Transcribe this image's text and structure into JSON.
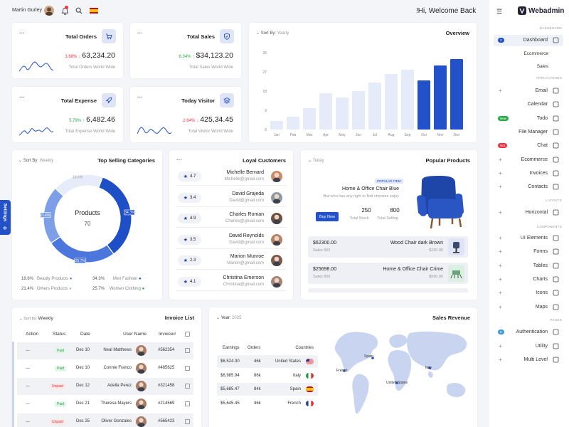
{
  "header": {
    "username": "Martin Gurley",
    "welcome": "!Hi, Welcome Back"
  },
  "stats": [
    {
      "title": "Total Orders",
      "pct": "3.68%",
      "trend": "down",
      "value": "63,234.20",
      "sub": "Total Orders World Wide",
      "icon": "cart-icon"
    },
    {
      "title": "Total Sales",
      "pct": "8.34%",
      "trend": "up",
      "value": "$34,123.20",
      "sub": "Total Sales World Wide",
      "icon": "shield-icon"
    },
    {
      "title": "Total Expense",
      "pct": "5.79%",
      "trend": "up",
      "value": "6,482.46",
      "sub": "Total Expense World Wide",
      "icon": "rocket-icon"
    },
    {
      "title": "Today Visitor",
      "pct": "2.64%",
      "trend": "down",
      "value": "425,34.45",
      "sub": "Total Visitor World Wide",
      "icon": "layers-icon"
    }
  ],
  "overview": {
    "title": "Overview",
    "sort_label": "Sort By:",
    "sort_value": "Yearly",
    "chart_data": {
      "type": "bar",
      "categories": [
        "Jan",
        "Feb",
        "Mar",
        "Apr",
        "May",
        "Jun",
        "Jul",
        "Aug",
        "Sep",
        "Oct",
        "Nov",
        "Dec"
      ],
      "values": [
        4,
        6,
        10,
        17,
        15,
        18,
        22,
        26,
        28,
        23,
        30,
        33
      ],
      "ticks": [
        "36",
        "27",
        "18",
        "9",
        "0"
      ],
      "ylim": [
        0,
        36
      ],
      "highlight_from": 9
    }
  },
  "categories": {
    "sort_label": "Sort By:",
    "sort_value": "Weekly",
    "title": "Top Selling Categories",
    "center_title": "Products",
    "center_value": "70",
    "chart_data": {
      "type": "pie",
      "slices": [
        {
          "value": 34.3,
          "label": "34.3%",
          "color": "#1f4fc6"
        },
        {
          "value": 25.7,
          "label": "25.7%",
          "color": "#4b77dc"
        },
        {
          "value": 21.4,
          "label": "21.4%",
          "color": "#7d9fe8"
        },
        {
          "value": 18.6,
          "label": "18.6%",
          "color": "#e6ecfa"
        }
      ]
    },
    "legend": [
      {
        "pct": "18.6%",
        "name": "Beauty Products",
        "color": "#4b77dc"
      },
      {
        "pct": "34.3%",
        "name": "Men Fashion",
        "color": "#1f4fc6"
      },
      {
        "pct": "21.4%",
        "name": "Others Products",
        "color": "#9fb4e3"
      },
      {
        "pct": "25.7%",
        "name": "Women Clothing",
        "color": "#2aa84a"
      }
    ]
  },
  "customers": {
    "title": "Loyal Customers",
    "items": [
      {
        "rating": "4.7",
        "name": "Michelle Bernard",
        "email": "Michelle@gmail.com"
      },
      {
        "rating": "3.4",
        "name": "David Grajeda",
        "email": "David@gmail.com"
      },
      {
        "rating": "4.9",
        "name": "Charles Roman",
        "email": "Charles@gmail.com"
      },
      {
        "rating": "3.5",
        "name": "David Reynolds",
        "email": "David@gmail.com"
      },
      {
        "rating": "2.3",
        "name": "Marion Munroe",
        "email": "Marion@gmail.com"
      },
      {
        "rating": "4.1",
        "name": "Christina Emerson",
        "email": "Christina@gmail.com"
      }
    ]
  },
  "popular": {
    "sort_value": "Today",
    "title": "Popular Products",
    "badge": "POPULAR ITEM",
    "product": "Home & Office Chair Blue",
    "desc": ".But who has any right to find chooses enjoy",
    "buy": "Buy Now",
    "stock_value": "250",
    "stock_label": "Total Stock",
    "sales_value": "800",
    "sales_label": "Total Selling",
    "rows": [
      {
        "amount": "$62300.00",
        "sales": "Sales 562",
        "name": "Wood Chair dark Brown",
        "price": "$230.00"
      },
      {
        "amount": "$25698.00",
        "sales": "Sales 856",
        "name": "Home & Office Chair Crime",
        "price": "$590.00"
      }
    ]
  },
  "invoice": {
    "sort_label": "Sort by:",
    "sort_value": "Weekly",
    "title": "Invoice List",
    "headers": [
      "Action",
      "Status",
      "Date",
      "User Name",
      "Invoice#"
    ],
    "rows": [
      {
        "action": "...",
        "status": "Paid",
        "date": "Dec 10",
        "name": "Neal Matthews",
        "invoice": "#562354"
      },
      {
        "action": "...",
        "status": "Paid",
        "date": "Dec 10",
        "name": "Connie Franco",
        "invoice": "#485625"
      },
      {
        "action": "...",
        "status": "Unpaid",
        "date": "Dec 12",
        "name": "Adella Perez",
        "invoice": "#321458"
      },
      {
        "action": "...",
        "status": "Paid",
        "date": "Dec 21",
        "name": "Theresa Mayers",
        "invoice": "#214569"
      },
      {
        "action": "...",
        "status": "Unpaid",
        "date": "Dec 25",
        "name": "Oliver Gonzales",
        "invoice": "#565423"
      }
    ]
  },
  "revenue": {
    "year_label": "Year:",
    "year_value": "2025",
    "title": "Sales Revenue",
    "headers": [
      "Earnings",
      "Orders",
      "Countries"
    ],
    "rows": [
      {
        "earnings": "$6,524.30",
        "orders": "46k",
        "country": "United States"
      },
      {
        "earnings": "$6,985.94",
        "orders": "86k",
        "country": "Italy"
      },
      {
        "earnings": "$5,685.47",
        "orders": "84k",
        "country": "Spain"
      },
      {
        "earnings": "$5,645.45",
        "orders": "46k",
        "country": "French"
      }
    ],
    "map_labels": [
      "Spain",
      "French",
      "Italy",
      "United States"
    ]
  },
  "sidebar": {
    "brand": "Webadmin",
    "sections": {
      "dashboard": "DASHBOARD",
      "applications": "APPLICATIONS",
      "layouts": "LAYOUTS",
      "components": "COMPONENTS",
      "pages": "PAGES"
    },
    "dashboard_items": {
      "dashboard": "Dashboard",
      "dashboard_badge": "2",
      "ecommerce": "Ecommerce",
      "sales": "Sales"
    },
    "apps": [
      {
        "label": "Email",
        "plus": "+"
      },
      {
        "label": "Calendar",
        "plus": ""
      },
      {
        "label": "Todo",
        "badge": "New",
        "plus": ""
      },
      {
        "label": "File Manager",
        "plus": ""
      },
      {
        "label": "Chat",
        "badge": "Hot",
        "plus": ""
      },
      {
        "label": "Ecommerce",
        "plus": "+"
      },
      {
        "label": "Invoices",
        "plus": "+"
      },
      {
        "label": "Contacts",
        "plus": "+"
      }
    ],
    "layouts": [
      {
        "label": "Horizontal",
        "plus": "+"
      }
    ],
    "components": [
      {
        "label": "UI Elements",
        "plus": "+"
      },
      {
        "label": "Forms",
        "plus": "+"
      },
      {
        "label": "Tables",
        "plus": "+"
      },
      {
        "label": "Charts",
        "plus": "+"
      },
      {
        "label": "Icons",
        "plus": "+"
      },
      {
        "label": "Maps",
        "plus": "+"
      }
    ],
    "pages": [
      {
        "label": "Authentication",
        "badge": "8",
        "plus": ""
      },
      {
        "label": "Utility",
        "plus": "+"
      },
      {
        "label": "Multi Level",
        "plus": "+"
      }
    ]
  },
  "settings_label": "Settings"
}
